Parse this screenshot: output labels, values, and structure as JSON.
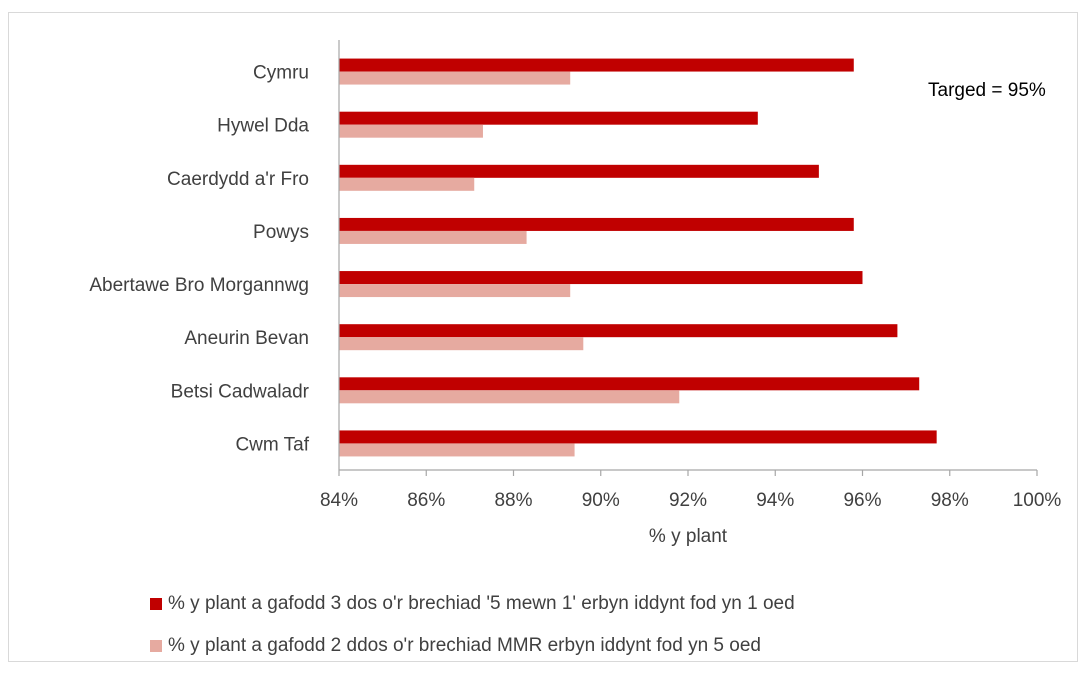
{
  "chart_data": {
    "type": "bar",
    "orientation": "horizontal",
    "categories": [
      "Cymru",
      "Hywel Dda",
      "Caerdydd a'r Fro",
      "Powys",
      "Abertawe Bro Morgannwg",
      "Aneurin Bevan",
      "Betsi Cadwaladr",
      "Cwm Taf"
    ],
    "series": [
      {
        "name": "% y plant a gafodd 3 dos o'r brechiad '5 mewn 1' erbyn iddynt fod yn 1 oed",
        "color": "#c00000",
        "values": [
          95.8,
          93.6,
          95.0,
          95.8,
          96.0,
          96.8,
          97.3,
          97.7
        ]
      },
      {
        "name": "% y plant a gafodd 2 ddos o'r brechiad MMR erbyn iddynt fod yn 5 oed",
        "color": "#e6aaa0",
        "values": [
          89.3,
          87.3,
          87.1,
          88.3,
          89.3,
          89.6,
          91.8,
          89.4
        ]
      }
    ],
    "xlim": [
      84,
      100
    ],
    "xticks": [
      "84%",
      "86%",
      "88%",
      "90%",
      "92%",
      "94%",
      "96%",
      "98%",
      "100%"
    ],
    "xlabel": "% y plant",
    "ylabel": "",
    "title": "",
    "annotation": "Targed = 95%",
    "legend_position": "bottom",
    "grid": false
  }
}
